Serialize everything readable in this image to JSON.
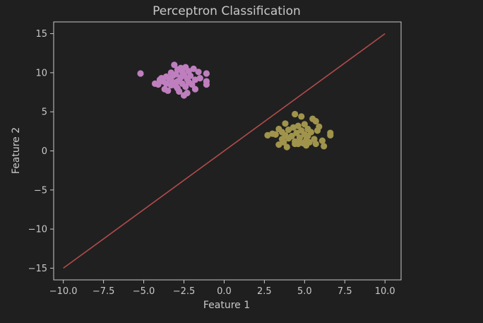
{
  "chart_data": {
    "type": "scatter",
    "title": "Perceptron Classification",
    "xlabel": "Feature 1",
    "ylabel": "Feature 2",
    "xlim": [
      -10.6,
      11.0
    ],
    "ylim": [
      -16.5,
      16.5
    ],
    "xticks": [
      -10.0,
      -7.5,
      -5.0,
      -2.5,
      0.0,
      2.5,
      5.0,
      7.5,
      10.0
    ],
    "xtick_labels": [
      "−10.0",
      "−7.5",
      "−5.0",
      "−2.5",
      "0.0",
      "2.5",
      "5.0",
      "7.5",
      "10.0"
    ],
    "yticks": [
      15,
      10,
      5,
      0,
      -5,
      -10,
      -15
    ],
    "ytick_labels": [
      "15",
      "10",
      "5",
      "0",
      "−5",
      "−10",
      "−15"
    ],
    "grid": false,
    "series": [
      {
        "color": "#bf7fbf",
        "points": [
          [
            -5.2,
            9.9
          ],
          [
            -4.3,
            8.6
          ],
          [
            -4.1,
            8.5
          ],
          [
            -4.0,
            9.1
          ],
          [
            -3.9,
            9.3
          ],
          [
            -3.8,
            8.9
          ],
          [
            -3.7,
            7.9
          ],
          [
            -3.6,
            9.5
          ],
          [
            -3.6,
            8.6
          ],
          [
            -3.5,
            7.7
          ],
          [
            -3.4,
            9.2
          ],
          [
            -3.3,
            10.0
          ],
          [
            -3.2,
            8.8
          ],
          [
            -3.2,
            9.6
          ],
          [
            -3.1,
            11.0
          ],
          [
            -3.0,
            8.3
          ],
          [
            -3.0,
            9.8
          ],
          [
            -2.9,
            10.4
          ],
          [
            -2.9,
            8.0
          ],
          [
            -2.8,
            9.0
          ],
          [
            -2.8,
            7.6
          ],
          [
            -2.7,
            9.4
          ],
          [
            -2.7,
            10.6
          ],
          [
            -2.6,
            8.6
          ],
          [
            -2.6,
            10.1
          ],
          [
            -2.5,
            7.1
          ],
          [
            -2.5,
            9.7
          ],
          [
            -2.4,
            8.2
          ],
          [
            -2.4,
            10.7
          ],
          [
            -2.3,
            9.2
          ],
          [
            -2.3,
            7.4
          ],
          [
            -2.2,
            8.8
          ],
          [
            -2.2,
            10.2
          ],
          [
            -2.1,
            9.6
          ],
          [
            -2.0,
            8.5
          ],
          [
            -1.9,
            10.5
          ],
          [
            -1.8,
            9.1
          ],
          [
            -1.8,
            7.9
          ],
          [
            -1.6,
            10.1
          ],
          [
            -1.5,
            9.3
          ],
          [
            -1.1,
            9.9
          ],
          [
            -1.1,
            8.9
          ],
          [
            -1.1,
            8.5
          ],
          [
            -2.9,
            8.9
          ],
          [
            -3.3,
            8.4
          ]
        ]
      },
      {
        "color": "#a0944c",
        "points": [
          [
            2.7,
            2.0
          ],
          [
            3.0,
            2.2
          ],
          [
            3.2,
            2.1
          ],
          [
            3.4,
            0.8
          ],
          [
            3.4,
            2.8
          ],
          [
            3.6,
            1.5
          ],
          [
            3.6,
            2.4
          ],
          [
            3.7,
            1.1
          ],
          [
            3.8,
            3.5
          ],
          [
            3.8,
            2.0
          ],
          [
            3.9,
            0.5
          ],
          [
            4.0,
            1.6
          ],
          [
            4.0,
            2.7
          ],
          [
            4.2,
            1.9
          ],
          [
            4.3,
            3.0
          ],
          [
            4.4,
            4.7
          ],
          [
            4.4,
            1.2
          ],
          [
            4.5,
            2.3
          ],
          [
            4.6,
            0.9
          ],
          [
            4.6,
            3.2
          ],
          [
            4.7,
            1.7
          ],
          [
            4.8,
            2.6
          ],
          [
            4.8,
            4.4
          ],
          [
            4.9,
            1.0
          ],
          [
            5.0,
            2.1
          ],
          [
            5.0,
            3.4
          ],
          [
            5.1,
            1.4
          ],
          [
            5.1,
            0.7
          ],
          [
            5.2,
            2.8
          ],
          [
            5.2,
            1.9
          ],
          [
            5.3,
            1.1
          ],
          [
            5.4,
            2.4
          ],
          [
            5.5,
            4.1
          ],
          [
            5.6,
            1.5
          ],
          [
            5.7,
            3.8
          ],
          [
            5.7,
            0.9
          ],
          [
            5.8,
            2.6
          ],
          [
            5.9,
            3.1
          ],
          [
            6.1,
            1.3
          ],
          [
            6.2,
            0.6
          ],
          [
            6.6,
            2.3
          ],
          [
            6.6,
            2.0
          ],
          [
            4.4,
            0.9
          ],
          [
            4.7,
            1.2
          ]
        ]
      }
    ],
    "decision_line": {
      "color": "#b24b4b",
      "x": [
        -10,
        10
      ],
      "y": [
        -15,
        15
      ]
    }
  }
}
